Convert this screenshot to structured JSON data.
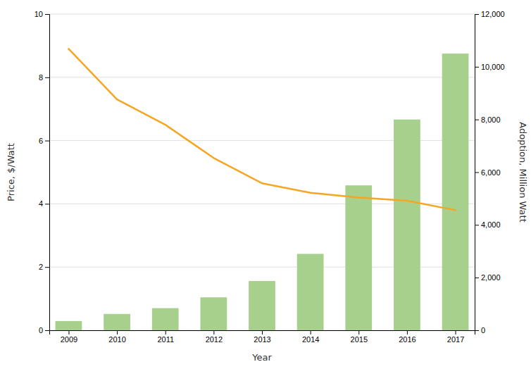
{
  "chart_data": {
    "type": "bar",
    "xlabel": "Year",
    "ylabel": "Price, $/Watt",
    "y2label": "Adoption, Million Watt",
    "x": [
      2009,
      2010,
      2011,
      2012,
      2013,
      2014,
      2015,
      2016,
      2017
    ],
    "xlim": [
      2008.6,
      2017.4
    ],
    "xticks": [
      2009,
      2010,
      2011,
      2012,
      2013,
      2014,
      2015,
      2016,
      2017
    ],
    "ylim": [
      0,
      10
    ],
    "yticks": [
      0,
      2,
      4,
      6,
      8,
      10
    ],
    "y2lim": [
      0,
      12000
    ],
    "y2ticks": [
      0,
      {
        "value": 2000,
        "label": "2,000"
      },
      {
        "value": 4000,
        "label": "4,000"
      },
      {
        "value": 6000,
        "label": "6,000"
      },
      {
        "value": 8000,
        "label": "8,000"
      },
      {
        "value": 10000,
        "label": "10,000"
      },
      {
        "value": 12000,
        "label": "12,000"
      }
    ],
    "grid": "y",
    "series": [
      {
        "type": "bar",
        "axis": "y2",
        "color": "#a8d08d",
        "values": [
          350,
          620,
          840,
          1250,
          1870,
          2900,
          5500,
          8000,
          10500
        ]
      },
      {
        "type": "line",
        "color": "#F5A623",
        "values": [
          8.9,
          7.3,
          6.5,
          5.45,
          4.65,
          4.35,
          4.2,
          4.1,
          3.8
        ]
      }
    ]
  }
}
